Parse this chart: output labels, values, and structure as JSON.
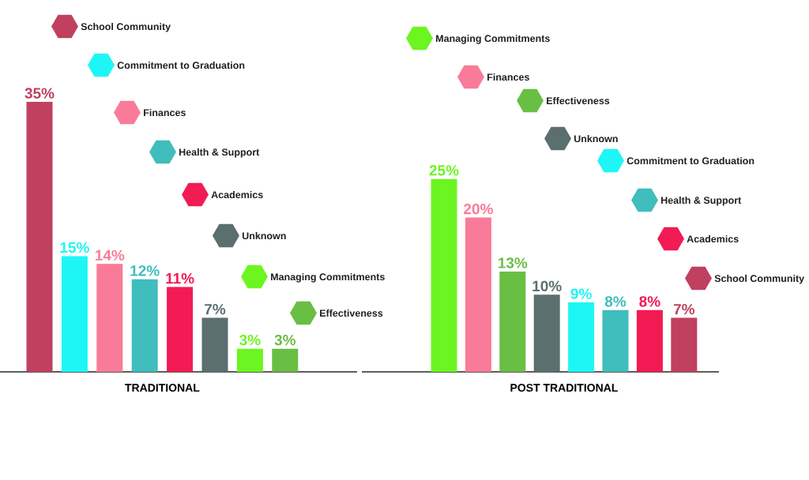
{
  "chart_data": [
    {
      "type": "bar",
      "xlabel": "TRADITIONAL",
      "categories": [
        null,
        null,
        null,
        null,
        null,
        null,
        null,
        null
      ],
      "stacked": true,
      "legend": "top",
      "series": [
        {
          "name": "School Community",
          "color": "#c0405f",
          "values": [
            35,
            null,
            null,
            null,
            null,
            null,
            null,
            null
          ],
          "value_labels": [
            "35%",
            null,
            null,
            null,
            null,
            null,
            null,
            null
          ]
        },
        {
          "name": "Commitment to Graduation",
          "color": "#1ef6f6",
          "values": [
            null,
            15,
            null,
            null,
            null,
            null,
            null,
            null
          ],
          "value_labels": [
            null,
            "15%",
            null,
            null,
            null,
            null,
            null,
            null
          ]
        },
        {
          "name": "Finances",
          "color": "#f97b99",
          "values": [
            null,
            null,
            14,
            null,
            null,
            null,
            null,
            null
          ],
          "value_labels": [
            null,
            null,
            "14%",
            null,
            null,
            null,
            null,
            null
          ]
        },
        {
          "name": "Health & Support",
          "color": "#40bdbd",
          "values": [
            null,
            null,
            null,
            12,
            null,
            null,
            null,
            null
          ],
          "value_labels": [
            null,
            null,
            null,
            "12%",
            null,
            null,
            null,
            null
          ]
        },
        {
          "name": "Academics",
          "color": "#f21b54",
          "values": [
            null,
            null,
            null,
            null,
            11,
            null,
            null,
            null
          ],
          "value_labels": [
            null,
            null,
            null,
            null,
            "11%",
            null,
            null,
            null
          ]
        },
        {
          "name": "Unknown",
          "color": "#5b6f6f",
          "values": [
            null,
            null,
            null,
            null,
            null,
            7,
            null,
            null
          ],
          "value_labels": [
            null,
            null,
            null,
            null,
            null,
            "7%",
            null,
            null
          ]
        },
        {
          "name": "Managing Commitments",
          "color": "#6cf520",
          "values": [
            null,
            null,
            null,
            null,
            null,
            null,
            3,
            null
          ],
          "value_labels": [
            null,
            null,
            null,
            null,
            null,
            null,
            "3%",
            null
          ]
        },
        {
          "name": "Effectiveness",
          "color": "#69be44",
          "values": [
            null,
            null,
            null,
            null,
            null,
            null,
            null,
            3
          ],
          "value_labels": [
            null,
            null,
            null,
            null,
            null,
            null,
            null,
            "3%"
          ]
        }
      ]
    },
    {
      "type": "bar",
      "xlabel": "POST TRADITIONAL",
      "categories": [
        null,
        null,
        null,
        null,
        null,
        null,
        null,
        null
      ],
      "stacked": true,
      "legend": "top right",
      "series": [
        {
          "name": "Managing Commitments",
          "color": "#6cf520",
          "values": [
            25,
            null,
            null,
            null,
            null,
            null,
            null,
            null
          ],
          "value_labels": [
            "25%",
            null,
            null,
            null,
            null,
            null,
            null,
            null
          ]
        },
        {
          "name": "Finances",
          "color": "#f97b99",
          "values": [
            null,
            20,
            null,
            null,
            null,
            null,
            null,
            null
          ],
          "value_labels": [
            null,
            "20%",
            null,
            null,
            null,
            null,
            null,
            null
          ]
        },
        {
          "name": "Effectiveness",
          "color": "#69be44",
          "values": [
            null,
            null,
            13,
            null,
            null,
            null,
            null,
            null
          ],
          "value_labels": [
            null,
            null,
            "13%",
            null,
            null,
            null,
            null,
            null
          ]
        },
        {
          "name": "Unknown",
          "color": "#5b6f6f",
          "values": [
            null,
            null,
            null,
            10,
            null,
            null,
            null,
            null
          ],
          "value_labels": [
            null,
            null,
            null,
            "10%",
            null,
            null,
            null,
            null
          ]
        },
        {
          "name": "Commitment to Graduation",
          "color": "#1ef6f6",
          "values": [
            null,
            null,
            null,
            null,
            9,
            null,
            null,
            null
          ],
          "value_labels": [
            null,
            null,
            null,
            null,
            "9%",
            null,
            null,
            null
          ]
        },
        {
          "name": "Health & Support",
          "color": "#40bdbd",
          "values": [
            null,
            null,
            null,
            null,
            null,
            8,
            null,
            null
          ],
          "value_labels": [
            null,
            null,
            null,
            null,
            null,
            "8%",
            null,
            null
          ]
        },
        {
          "name": "Academics",
          "color": "#f21b54",
          "values": [
            null,
            null,
            null,
            null,
            null,
            null,
            8,
            null
          ],
          "value_labels": [
            null,
            null,
            null,
            null,
            null,
            null,
            "8%",
            null
          ]
        },
        {
          "name": "School Community",
          "color": "#c0405f",
          "values": [
            null,
            null,
            null,
            null,
            null,
            null,
            null,
            7
          ],
          "value_labels": [
            null,
            null,
            null,
            null,
            null,
            null,
            null,
            "7%"
          ]
        }
      ]
    }
  ]
}
